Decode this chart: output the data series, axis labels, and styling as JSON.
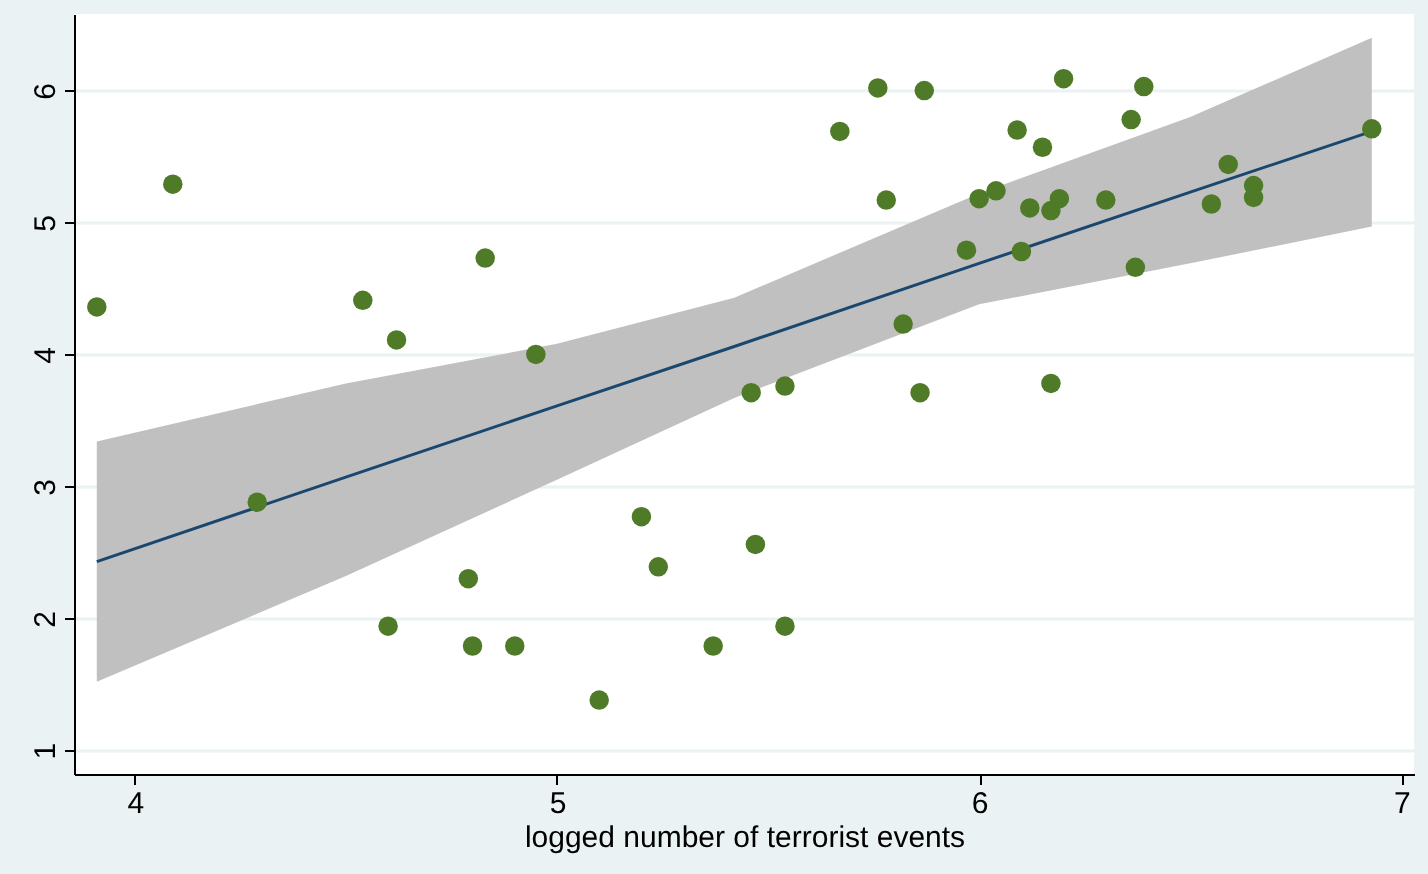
{
  "chart_data": {
    "type": "scatter",
    "xlabel": "logged number of terrorist events",
    "xlim": [
      3.856,
      7.03
    ],
    "ylim": [
      0.82,
      6.58
    ],
    "xticks": [
      4,
      5,
      6,
      7
    ],
    "yticks": [
      1,
      2,
      3,
      4,
      5,
      6
    ],
    "grid": "y",
    "marker": "circle",
    "series": [
      {
        "type": "line",
        "marker": "none",
        "color": "#1a476f",
        "x": [
          3.91,
          4.5,
          5,
          5.42,
          6,
          6.5,
          6.93
        ],
        "values": [
          2.43,
          3.07,
          3.61,
          4.06,
          4.69,
          5.23,
          5.69
        ],
        "lower": [
          1.52,
          2.32,
          3.05,
          3.67,
          4.38,
          4.69,
          4.97
        ],
        "upper": [
          3.34,
          3.78,
          4.08,
          4.43,
          5.22,
          5.8,
          6.4
        ]
      },
      {
        "color": "#4f7a28",
        "x": [
          3.91,
          4.09,
          4.29,
          4.54,
          4.62,
          4.6,
          4.83,
          4.95,
          4.79,
          4.8,
          4.9,
          5.1,
          5.2,
          5.24,
          5.37,
          5.46,
          5.54,
          5.47,
          5.54,
          5.67,
          5.76,
          5.87,
          5.78,
          5.82,
          5.86,
          5.97,
          6.0,
          6.04,
          6.09,
          6.1,
          6.12,
          6.15,
          6.17,
          6.19,
          6.17,
          6.2,
          6.3,
          6.36,
          6.39,
          6.37,
          6.55,
          6.59,
          6.65,
          6.65,
          6.93
        ],
        "values": [
          4.36,
          5.29,
          2.88,
          4.41,
          4.11,
          1.94,
          4.73,
          4.0,
          2.3,
          1.79,
          1.79,
          1.38,
          2.77,
          2.39,
          1.79,
          3.71,
          3.76,
          2.56,
          1.94,
          5.69,
          6.02,
          6.0,
          5.17,
          4.23,
          3.71,
          4.79,
          5.18,
          5.24,
          5.7,
          4.78,
          5.11,
          5.57,
          5.09,
          5.18,
          3.78,
          6.09,
          5.17,
          5.78,
          6.03,
          4.66,
          5.14,
          5.44,
          5.28,
          5.19,
          5.71
        ]
      }
    ]
  }
}
